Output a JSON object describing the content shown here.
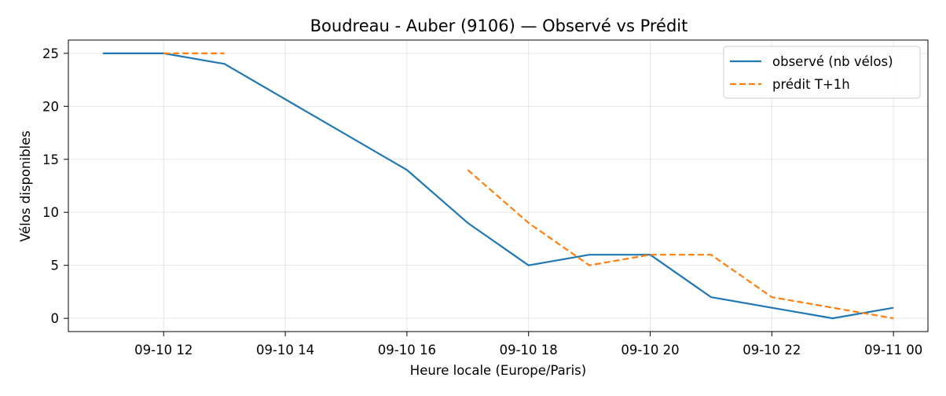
{
  "chart_data": {
    "type": "line",
    "title": "Boudreau - Auber (9106) — Observé vs Prédit",
    "xlabel": "Heure locale (Europe/Paris)",
    "ylabel": "Vélos disponibles",
    "x_ticks": [
      {
        "time": "2024-09-10T12:00",
        "label": "09-10 12"
      },
      {
        "time": "2024-09-10T14:00",
        "label": "09-10 14"
      },
      {
        "time": "2024-09-10T16:00",
        "label": "09-10 16"
      },
      {
        "time": "2024-09-10T18:00",
        "label": "09-10 18"
      },
      {
        "time": "2024-09-10T20:00",
        "label": "09-10 20"
      },
      {
        "time": "2024-09-10T22:00",
        "label": "09-10 22"
      },
      {
        "time": "2024-09-11T00:00",
        "label": "09-11 00"
      }
    ],
    "y_ticks": [
      0,
      5,
      10,
      15,
      20,
      25
    ],
    "xlim": [
      "2024-09-10T10:26",
      "2024-09-11T00:34"
    ],
    "ylim": [
      -1.25,
      26.25
    ],
    "grid": true,
    "legend_position": "top-right",
    "series": [
      {
        "name": "observé (nb vélos)",
        "color": "#1f77b4",
        "style": "solid",
        "points": [
          {
            "x": "2024-09-10T11:00",
            "y": 25
          },
          {
            "x": "2024-09-10T12:00",
            "y": 25
          },
          {
            "x": "2024-09-10T13:00",
            "y": 24
          },
          {
            "x": "2024-09-10T16:00",
            "y": 14
          },
          {
            "x": "2024-09-10T17:00",
            "y": 9
          },
          {
            "x": "2024-09-10T18:00",
            "y": 5
          },
          {
            "x": "2024-09-10T19:00",
            "y": 6
          },
          {
            "x": "2024-09-10T20:00",
            "y": 6
          },
          {
            "x": "2024-09-10T21:00",
            "y": 2
          },
          {
            "x": "2024-09-10T22:00",
            "y": 1
          },
          {
            "x": "2024-09-10T23:00",
            "y": 0
          },
          {
            "x": "2024-09-11T00:00",
            "y": 1
          }
        ]
      },
      {
        "name": "prédit T+1h",
        "color": "#ff7f0e",
        "style": "dashed",
        "segments": [
          [
            {
              "x": "2024-09-10T12:00",
              "y": 25
            },
            {
              "x": "2024-09-10T13:00",
              "y": 25
            }
          ],
          [
            {
              "x": "2024-09-10T17:00",
              "y": 14
            },
            {
              "x": "2024-09-10T18:00",
              "y": 9
            },
            {
              "x": "2024-09-10T19:00",
              "y": 5
            },
            {
              "x": "2024-09-10T20:00",
              "y": 6
            },
            {
              "x": "2024-09-10T21:00",
              "y": 6
            },
            {
              "x": "2024-09-10T22:00",
              "y": 2
            },
            {
              "x": "2024-09-10T23:00",
              "y": 1
            },
            {
              "x": "2024-09-11T00:00",
              "y": 0
            }
          ]
        ]
      }
    ]
  }
}
